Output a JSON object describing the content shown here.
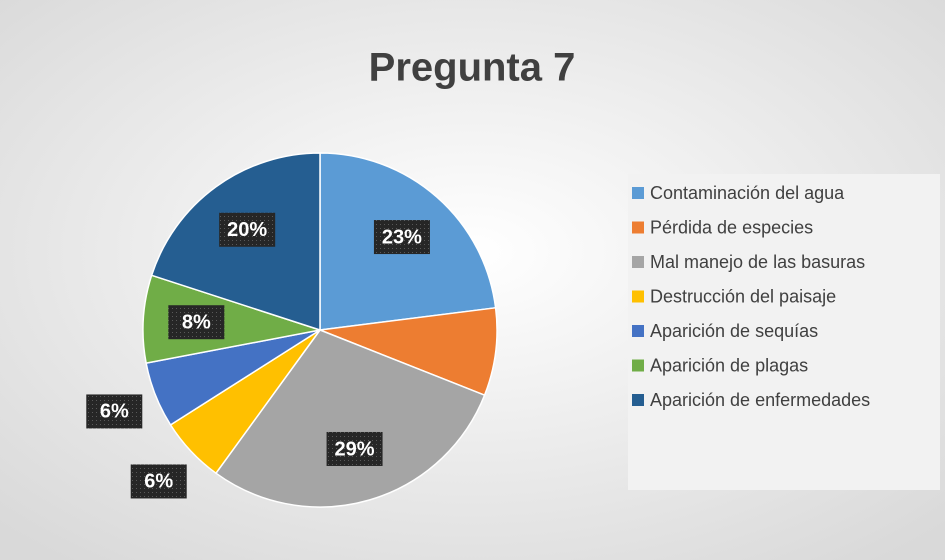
{
  "chart_data": {
    "type": "pie",
    "title": "Pregunta 7",
    "categories": [
      "Contaminación del agua",
      "Pérdida de especies",
      "Mal manejo de las basuras",
      "Destrucción del paisaje",
      "Aparición de sequías",
      "Aparición de plagas",
      "Aparición de enfermedades"
    ],
    "values": [
      23,
      8,
      29,
      6,
      6,
      8,
      20
    ],
    "value_labels": [
      "23%",
      null,
      "29%",
      "6%",
      "6%",
      "8%",
      "20%"
    ],
    "colors": [
      "#5b9bd5",
      "#ed7d31",
      "#a5a5a5",
      "#ffc000",
      "#4472c4",
      "#70ad47",
      "#255e91"
    ],
    "legend": "right"
  }
}
